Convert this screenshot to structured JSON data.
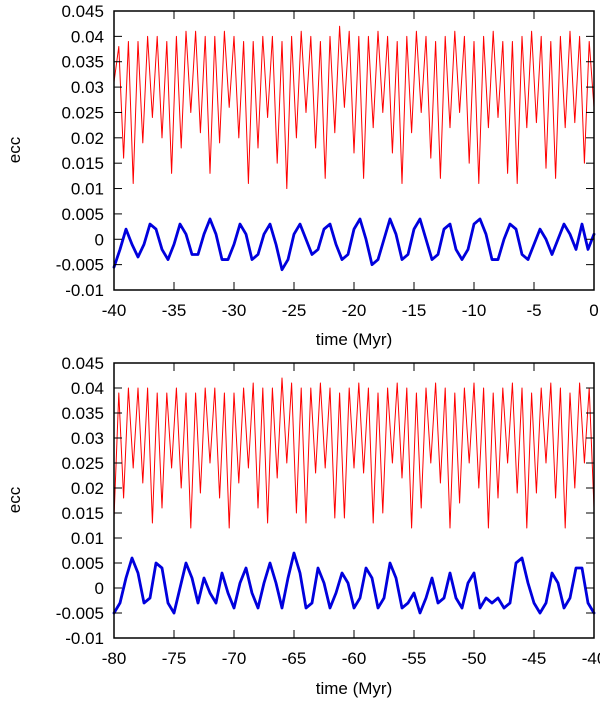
{
  "chart_data": [
    {
      "type": "line",
      "xlabel": "time (Myr)",
      "ylabel": "ecc",
      "xlim": [
        -40,
        0
      ],
      "ylim": [
        -0.01,
        0.045
      ],
      "xticks": [
        -40,
        -35,
        -30,
        -25,
        -20,
        -15,
        -10,
        -5,
        0
      ],
      "xtick_labels": [
        "-40",
        "-35",
        "-30",
        "-25",
        "-20",
        "-15",
        "-10",
        "-5",
        "0"
      ],
      "yticks": [
        -0.01,
        -0.005,
        0,
        0.005,
        0.01,
        0.015,
        0.02,
        0.025,
        0.03,
        0.035,
        0.04,
        0.045
      ],
      "ytick_labels": [
        "-0.01",
        "-0.005",
        "0",
        "0.005",
        "0.01",
        "0.015",
        "0.02",
        "0.025",
        "0.03",
        "0.035",
        "0.04",
        "0.045"
      ],
      "grid": false,
      "legend": false,
      "series": [
        {
          "color": "#ff0000",
          "style": "thin",
          "x": [
            -40,
            -39.6,
            -39.2,
            -38.8,
            -38.4,
            -38.0,
            -37.6,
            -37.2,
            -36.8,
            -36.4,
            -36.0,
            -35.6,
            -35.2,
            -34.8,
            -34.4,
            -34.0,
            -33.6,
            -33.2,
            -32.8,
            -32.4,
            -32.0,
            -31.6,
            -31.2,
            -30.8,
            -30.4,
            -30.0,
            -29.6,
            -29.2,
            -28.8,
            -28.4,
            -28.0,
            -27.6,
            -27.2,
            -26.8,
            -26.4,
            -26.0,
            -25.6,
            -25.2,
            -24.8,
            -24.4,
            -24.0,
            -23.6,
            -23.2,
            -22.8,
            -22.4,
            -22.0,
            -21.6,
            -21.2,
            -20.8,
            -20.4,
            -20.0,
            -19.6,
            -19.2,
            -18.8,
            -18.4,
            -18.0,
            -17.6,
            -17.2,
            -16.8,
            -16.4,
            -16.0,
            -15.6,
            -15.2,
            -14.8,
            -14.4,
            -14.0,
            -13.6,
            -13.2,
            -12.8,
            -12.4,
            -12.0,
            -11.6,
            -11.2,
            -10.8,
            -10.4,
            -10.0,
            -9.6,
            -9.2,
            -8.8,
            -8.4,
            -8.0,
            -7.6,
            -7.2,
            -6.8,
            -6.4,
            -6.0,
            -5.6,
            -5.2,
            -4.8,
            -4.4,
            -4.0,
            -3.6,
            -3.2,
            -2.8,
            -2.4,
            -2.0,
            -1.6,
            -1.2,
            -0.8,
            -0.4,
            0
          ],
          "y": [
            0.031,
            0.038,
            0.016,
            0.039,
            0.011,
            0.039,
            0.019,
            0.04,
            0.024,
            0.04,
            0.02,
            0.039,
            0.013,
            0.04,
            0.018,
            0.041,
            0.025,
            0.041,
            0.021,
            0.04,
            0.013,
            0.04,
            0.019,
            0.041,
            0.026,
            0.04,
            0.02,
            0.039,
            0.011,
            0.039,
            0.018,
            0.04,
            0.024,
            0.04,
            0.015,
            0.039,
            0.01,
            0.04,
            0.02,
            0.041,
            0.025,
            0.04,
            0.018,
            0.039,
            0.012,
            0.04,
            0.021,
            0.042,
            0.026,
            0.041,
            0.017,
            0.04,
            0.012,
            0.04,
            0.022,
            0.041,
            0.025,
            0.04,
            0.017,
            0.039,
            0.011,
            0.04,
            0.021,
            0.041,
            0.025,
            0.04,
            0.016,
            0.039,
            0.012,
            0.04,
            0.022,
            0.041,
            0.025,
            0.04,
            0.015,
            0.039,
            0.011,
            0.04,
            0.022,
            0.041,
            0.024,
            0.039,
            0.013,
            0.039,
            0.011,
            0.04,
            0.022,
            0.041,
            0.023,
            0.04,
            0.014,
            0.039,
            0.012,
            0.04,
            0.022,
            0.041,
            0.023,
            0.04,
            0.015,
            0.039,
            0.026
          ]
        },
        {
          "color": "#0000dd",
          "style": "thick",
          "x": [
            -40,
            -39.5,
            -39.0,
            -38.5,
            -38.0,
            -37.5,
            -37.0,
            -36.5,
            -36.0,
            -35.5,
            -35.0,
            -34.5,
            -34.0,
            -33.5,
            -33.0,
            -32.5,
            -32.0,
            -31.5,
            -31.0,
            -30.5,
            -30.0,
            -29.5,
            -29.0,
            -28.5,
            -28.0,
            -27.5,
            -27.0,
            -26.5,
            -26.0,
            -25.5,
            -25.0,
            -24.5,
            -24.0,
            -23.5,
            -23.0,
            -22.5,
            -22.0,
            -21.5,
            -21.0,
            -20.5,
            -20.0,
            -19.5,
            -19.0,
            -18.5,
            -18.0,
            -17.5,
            -17.0,
            -16.5,
            -16.0,
            -15.5,
            -15.0,
            -14.5,
            -14.0,
            -13.5,
            -13.0,
            -12.5,
            -12.0,
            -11.5,
            -11.0,
            -10.5,
            -10.0,
            -9.5,
            -9.0,
            -8.5,
            -8.0,
            -7.5,
            -7.0,
            -6.5,
            -6.0,
            -5.5,
            -5.0,
            -4.5,
            -4.0,
            -3.5,
            -3.0,
            -2.5,
            -2.0,
            -1.5,
            -1.0,
            -0.5,
            0
          ],
          "y": [
            -0.0055,
            -0.002,
            0.002,
            -0.001,
            -0.0035,
            -0.001,
            0.003,
            0.002,
            -0.002,
            -0.004,
            -0.001,
            0.003,
            0.001,
            -0.003,
            -0.003,
            0.001,
            0.004,
            0.001,
            -0.004,
            -0.004,
            -0.001,
            0.003,
            0.001,
            -0.004,
            -0.003,
            0.001,
            0.003,
            -0.001,
            -0.006,
            -0.004,
            0.001,
            0.003,
            0.0,
            -0.003,
            -0.002,
            0.002,
            0.003,
            -0.001,
            -0.004,
            -0.003,
            0.002,
            0.004,
            0.0,
            -0.005,
            -0.004,
            0.0,
            0.004,
            0.001,
            -0.004,
            -0.003,
            0.002,
            0.004,
            0.0,
            -0.004,
            -0.003,
            0.002,
            0.003,
            -0.002,
            -0.004,
            -0.002,
            0.003,
            0.004,
            0.001,
            -0.004,
            -0.004,
            0.0,
            0.003,
            0.002,
            -0.003,
            -0.004,
            -0.001,
            0.002,
            0.0,
            -0.003,
            0.0,
            0.003,
            0.001,
            -0.002,
            0.003,
            -0.002,
            0.001
          ]
        }
      ]
    },
    {
      "type": "line",
      "xlabel": "time (Myr)",
      "ylabel": "ecc",
      "xlim": [
        -80,
        -40
      ],
      "ylim": [
        -0.01,
        0.045
      ],
      "xticks": [
        -80,
        -75,
        -70,
        -65,
        -60,
        -55,
        -50,
        -45,
        -40
      ],
      "xtick_labels": [
        "-80",
        "-75",
        "-70",
        "-65",
        "-60",
        "-55",
        "-50",
        "-45",
        "-40"
      ],
      "yticks": [
        -0.01,
        -0.005,
        0,
        0.005,
        0.01,
        0.015,
        0.02,
        0.025,
        0.03,
        0.035,
        0.04,
        0.045
      ],
      "ytick_labels": [
        "-0.01",
        "-0.005",
        "0",
        "0.005",
        "0.01",
        "0.015",
        "0.02",
        "0.025",
        "0.03",
        "0.035",
        "0.04",
        "0.045"
      ],
      "grid": false,
      "legend": false,
      "series": [
        {
          "color": "#ff0000",
          "style": "thin",
          "x": [
            -80,
            -79.6,
            -79.2,
            -78.8,
            -78.4,
            -78.0,
            -77.6,
            -77.2,
            -76.8,
            -76.4,
            -76.0,
            -75.6,
            -75.2,
            -74.8,
            -74.4,
            -74.0,
            -73.6,
            -73.2,
            -72.8,
            -72.4,
            -72.0,
            -71.6,
            -71.2,
            -70.8,
            -70.4,
            -70.0,
            -69.6,
            -69.2,
            -68.8,
            -68.4,
            -68.0,
            -67.6,
            -67.2,
            -66.8,
            -66.4,
            -66.0,
            -65.6,
            -65.2,
            -64.8,
            -64.4,
            -64.0,
            -63.6,
            -63.2,
            -62.8,
            -62.4,
            -62.0,
            -61.6,
            -61.2,
            -60.8,
            -60.4,
            -60.0,
            -59.6,
            -59.2,
            -58.8,
            -58.4,
            -58.0,
            -57.6,
            -57.2,
            -56.8,
            -56.4,
            -56.0,
            -55.6,
            -55.2,
            -54.8,
            -54.4,
            -54.0,
            -53.6,
            -53.2,
            -52.8,
            -52.4,
            -52.0,
            -51.6,
            -51.2,
            -50.8,
            -50.4,
            -50.0,
            -49.6,
            -49.2,
            -48.8,
            -48.4,
            -48.0,
            -47.6,
            -47.2,
            -46.8,
            -46.4,
            -46.0,
            -45.6,
            -45.2,
            -44.8,
            -44.4,
            -44.0,
            -43.6,
            -43.2,
            -42.8,
            -42.4,
            -42.0,
            -41.6,
            -41.2,
            -40.8,
            -40.4,
            -40.0
          ],
          "y": [
            0.014,
            0.039,
            0.018,
            0.04,
            0.024,
            0.04,
            0.021,
            0.04,
            0.013,
            0.039,
            0.016,
            0.039,
            0.024,
            0.04,
            0.02,
            0.039,
            0.012,
            0.039,
            0.019,
            0.04,
            0.025,
            0.04,
            0.018,
            0.039,
            0.012,
            0.039,
            0.021,
            0.04,
            0.024,
            0.041,
            0.016,
            0.04,
            0.013,
            0.04,
            0.022,
            0.042,
            0.025,
            0.041,
            0.015,
            0.04,
            0.013,
            0.04,
            0.023,
            0.041,
            0.024,
            0.04,
            0.014,
            0.039,
            0.014,
            0.04,
            0.024,
            0.041,
            0.023,
            0.04,
            0.013,
            0.039,
            0.015,
            0.04,
            0.025,
            0.041,
            0.022,
            0.04,
            0.012,
            0.039,
            0.016,
            0.04,
            0.025,
            0.041,
            0.021,
            0.04,
            0.012,
            0.039,
            0.017,
            0.04,
            0.025,
            0.041,
            0.02,
            0.04,
            0.012,
            0.039,
            0.018,
            0.04,
            0.025,
            0.041,
            0.019,
            0.04,
            0.012,
            0.039,
            0.019,
            0.04,
            0.025,
            0.041,
            0.018,
            0.04,
            0.012,
            0.039,
            0.02,
            0.041,
            0.025,
            0.04,
            0.016
          ]
        },
        {
          "color": "#0000dd",
          "style": "thick",
          "x": [
            -80,
            -79.5,
            -79.0,
            -78.5,
            -78.0,
            -77.5,
            -77.0,
            -76.5,
            -76.0,
            -75.5,
            -75.0,
            -74.5,
            -74.0,
            -73.5,
            -73.0,
            -72.5,
            -72.0,
            -71.5,
            -71.0,
            -70.5,
            -70.0,
            -69.5,
            -69.0,
            -68.5,
            -68.0,
            -67.5,
            -67.0,
            -66.5,
            -66.0,
            -65.5,
            -65.0,
            -64.5,
            -64.0,
            -63.5,
            -63.0,
            -62.5,
            -62.0,
            -61.5,
            -61.0,
            -60.5,
            -60.0,
            -59.5,
            -59.0,
            -58.5,
            -58.0,
            -57.5,
            -57.0,
            -56.5,
            -56.0,
            -55.5,
            -55.0,
            -54.5,
            -54.0,
            -53.5,
            -53.0,
            -52.5,
            -52.0,
            -51.5,
            -51.0,
            -50.5,
            -50.0,
            -49.5,
            -49.0,
            -48.5,
            -48.0,
            -47.5,
            -47.0,
            -46.5,
            -46.0,
            -45.5,
            -45.0,
            -44.5,
            -44.0,
            -43.5,
            -43.0,
            -42.5,
            -42.0,
            -41.5,
            -41.0,
            -40.5,
            -40.0
          ],
          "y": [
            -0.005,
            -0.003,
            0.002,
            0.006,
            0.003,
            -0.003,
            -0.002,
            0.005,
            0.004,
            -0.003,
            -0.005,
            0.0,
            0.005,
            0.002,
            -0.003,
            0.002,
            -0.001,
            -0.003,
            0.003,
            -0.001,
            -0.004,
            0.001,
            0.004,
            -0.001,
            -0.004,
            0.001,
            0.005,
            0.001,
            -0.004,
            0.002,
            0.007,
            0.003,
            -0.004,
            -0.003,
            0.004,
            0.001,
            -0.004,
            -0.001,
            0.003,
            0.001,
            -0.004,
            -0.002,
            0.004,
            0.002,
            -0.004,
            -0.002,
            0.005,
            0.002,
            -0.004,
            -0.003,
            -0.001,
            -0.005,
            -0.002,
            0.002,
            -0.003,
            -0.002,
            0.003,
            -0.002,
            -0.004,
            0.001,
            0.003,
            -0.004,
            -0.002,
            -0.003,
            -0.002,
            -0.004,
            -0.003,
            0.005,
            0.006,
            0.001,
            -0.003,
            -0.005,
            -0.003,
            0.003,
            0.001,
            -0.004,
            -0.002,
            0.004,
            0.004,
            -0.003,
            -0.005
          ]
        }
      ]
    }
  ]
}
